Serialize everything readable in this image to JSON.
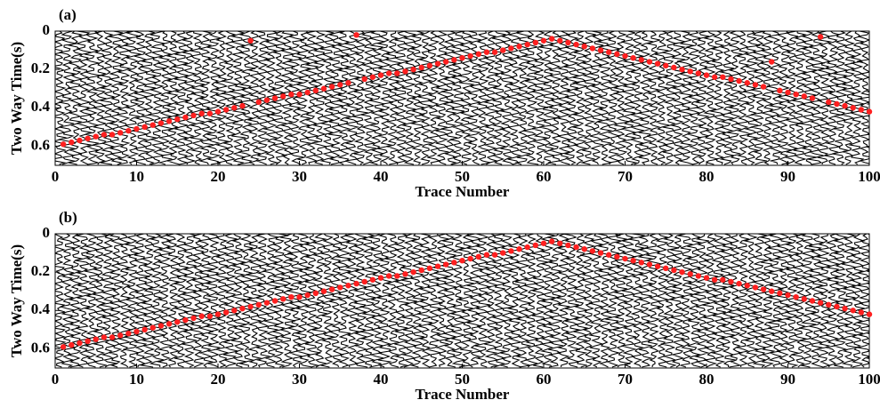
{
  "chart_data": [
    {
      "type": "scatter",
      "title": "(a)",
      "xlabel": "Trace Number",
      "ylabel": "Two Way Time(s)",
      "color": "#ff2020",
      "xlim": [
        0,
        100
      ],
      "ylim": [
        0,
        0.7
      ],
      "xticks": [
        0,
        10,
        20,
        30,
        40,
        50,
        60,
        70,
        80,
        90,
        100
      ],
      "yticks": [
        0,
        0.2,
        0.4,
        0.6
      ],
      "y_inverted": true,
      "x": [
        1,
        2,
        3,
        4,
        5,
        6,
        7,
        8,
        9,
        10,
        11,
        12,
        13,
        14,
        15,
        16,
        17,
        18,
        19,
        20,
        21,
        22,
        23,
        24,
        25,
        26,
        27,
        28,
        29,
        30,
        31,
        32,
        33,
        34,
        35,
        36,
        37,
        38,
        39,
        40,
        41,
        42,
        43,
        44,
        45,
        46,
        47,
        48,
        49,
        50,
        51,
        52,
        53,
        54,
        55,
        56,
        57,
        58,
        59,
        60,
        61,
        62,
        63,
        64,
        65,
        66,
        67,
        68,
        69,
        70,
        71,
        72,
        73,
        74,
        75,
        76,
        77,
        78,
        79,
        80,
        81,
        82,
        83,
        84,
        85,
        86,
        87,
        88,
        89,
        90,
        91,
        92,
        93,
        94,
        95,
        96,
        97,
        98,
        99,
        100
      ],
      "values": [
        0.59,
        0.58,
        0.57,
        0.56,
        0.55,
        0.54,
        0.54,
        0.53,
        0.52,
        0.51,
        0.5,
        0.49,
        0.48,
        0.47,
        0.46,
        0.45,
        0.44,
        0.43,
        0.43,
        0.42,
        0.41,
        0.4,
        0.39,
        0.05,
        0.37,
        0.36,
        0.35,
        0.34,
        0.33,
        0.33,
        0.32,
        0.31,
        0.3,
        0.29,
        0.28,
        0.27,
        0.02,
        0.25,
        0.24,
        0.23,
        0.22,
        0.22,
        0.21,
        0.2,
        0.19,
        0.18,
        0.17,
        0.16,
        0.15,
        0.14,
        0.13,
        0.12,
        0.11,
        0.11,
        0.1,
        0.09,
        0.08,
        0.07,
        0.06,
        0.05,
        0.04,
        0.05,
        0.06,
        0.07,
        0.08,
        0.09,
        0.1,
        0.11,
        0.12,
        0.13,
        0.14,
        0.15,
        0.16,
        0.17,
        0.18,
        0.19,
        0.2,
        0.21,
        0.22,
        0.23,
        0.24,
        0.24,
        0.25,
        0.26,
        0.27,
        0.28,
        0.29,
        0.16,
        0.31,
        0.32,
        0.33,
        0.34,
        0.35,
        0.03,
        0.37,
        0.38,
        0.39,
        0.4,
        0.41,
        0.42
      ]
    },
    {
      "type": "scatter",
      "title": "(b)",
      "xlabel": "Trace Number",
      "ylabel": "Two Way Time(s)",
      "color": "#ff2020",
      "xlim": [
        0,
        100
      ],
      "ylim": [
        0,
        0.7
      ],
      "xticks": [
        0,
        10,
        20,
        30,
        40,
        50,
        60,
        70,
        80,
        90,
        100
      ],
      "yticks": [
        0,
        0.2,
        0.4,
        0.6
      ],
      "y_inverted": true,
      "x": [
        1,
        2,
        3,
        4,
        5,
        6,
        7,
        8,
        9,
        10,
        11,
        12,
        13,
        14,
        15,
        16,
        17,
        18,
        19,
        20,
        21,
        22,
        23,
        24,
        25,
        26,
        27,
        28,
        29,
        30,
        31,
        32,
        33,
        34,
        35,
        36,
        37,
        38,
        39,
        40,
        41,
        42,
        43,
        44,
        45,
        46,
        47,
        48,
        49,
        50,
        51,
        52,
        53,
        54,
        55,
        56,
        57,
        58,
        59,
        60,
        61,
        62,
        63,
        64,
        65,
        66,
        67,
        68,
        69,
        70,
        71,
        72,
        73,
        74,
        75,
        76,
        77,
        78,
        79,
        80,
        81,
        82,
        83,
        84,
        85,
        86,
        87,
        88,
        89,
        90,
        91,
        92,
        93,
        94,
        95,
        96,
        97,
        98,
        99,
        100
      ],
      "values": [
        0.59,
        0.58,
        0.57,
        0.56,
        0.55,
        0.54,
        0.54,
        0.53,
        0.52,
        0.51,
        0.5,
        0.49,
        0.48,
        0.47,
        0.46,
        0.45,
        0.44,
        0.43,
        0.43,
        0.42,
        0.41,
        0.4,
        0.39,
        0.38,
        0.37,
        0.36,
        0.35,
        0.34,
        0.33,
        0.33,
        0.32,
        0.31,
        0.3,
        0.29,
        0.28,
        0.27,
        0.26,
        0.25,
        0.24,
        0.23,
        0.22,
        0.22,
        0.21,
        0.2,
        0.19,
        0.18,
        0.17,
        0.16,
        0.15,
        0.14,
        0.13,
        0.12,
        0.11,
        0.11,
        0.1,
        0.09,
        0.08,
        0.07,
        0.06,
        0.05,
        0.04,
        0.05,
        0.06,
        0.07,
        0.08,
        0.09,
        0.1,
        0.11,
        0.12,
        0.13,
        0.14,
        0.15,
        0.16,
        0.17,
        0.18,
        0.19,
        0.2,
        0.21,
        0.22,
        0.23,
        0.24,
        0.24,
        0.25,
        0.26,
        0.27,
        0.28,
        0.29,
        0.3,
        0.31,
        0.32,
        0.33,
        0.34,
        0.35,
        0.36,
        0.37,
        0.38,
        0.39,
        0.4,
        0.41,
        0.42
      ]
    }
  ]
}
